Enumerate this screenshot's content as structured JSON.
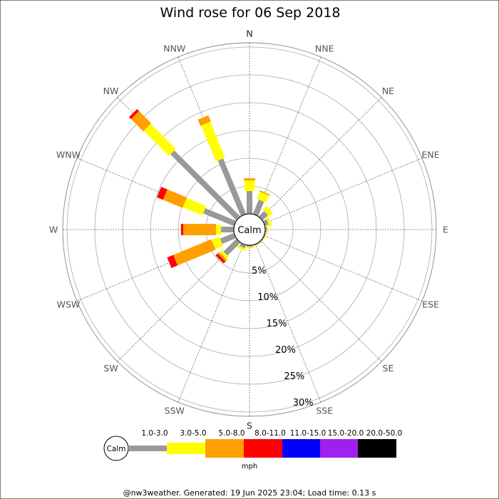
{
  "chart_data": {
    "type": "wind-rose",
    "title": "Wind rose for 06 Sep 2018",
    "directions": [
      "N",
      "NNE",
      "NE",
      "ENE",
      "E",
      "ESE",
      "SE",
      "SSE",
      "S",
      "SSW",
      "SW",
      "WSW",
      "W",
      "WNW",
      "NW",
      "NNW"
    ],
    "ring_labels": [
      "5%",
      "10%",
      "15%",
      "20%",
      "25%",
      "30%"
    ],
    "ring_values": [
      5,
      10,
      15,
      20,
      25,
      30
    ],
    "calm_label": "Calm",
    "units": "mph",
    "speed_bins": [
      {
        "label": "1.0-3.0",
        "color": "#999999"
      },
      {
        "label": "3.0-5.0",
        "color": "#ffff00"
      },
      {
        "label": "5.0-8.0",
        "color": "#ff9f00"
      },
      {
        "label": "8.0-11.0",
        "color": "#ff0000"
      },
      {
        "label": "11.0-15.0",
        "color": "#0000ff"
      },
      {
        "label": "15.0-20.0",
        "color": "#a020f0"
      },
      {
        "label": "20.0-50.0",
        "color": "#000000"
      }
    ],
    "cumulative_percent": {
      "N": [
        4.1,
        6.0,
        6.4,
        6.4,
        6.4,
        6.4,
        6.4
      ],
      "NNE": [
        2.8,
        4.2,
        4.4,
        4.4,
        4.4,
        4.4,
        4.4
      ],
      "NE": [
        1.4,
        2.3,
        2.3,
        2.3,
        2.3,
        2.3,
        2.3
      ],
      "ENE": [
        0.7,
        1.2,
        1.2,
        1.2,
        1.2,
        1.2,
        1.2
      ],
      "E": [
        0.3,
        0.5,
        0.5,
        0.5,
        0.5,
        0.5,
        0.5
      ],
      "ESE": [
        0.2,
        0.3,
        0.3,
        0.3,
        0.3,
        0.3,
        0.3
      ],
      "SE": [
        0.2,
        0.3,
        0.3,
        0.3,
        0.3,
        0.3,
        0.3
      ],
      "SSE": [
        0.2,
        0.3,
        0.3,
        0.3,
        0.3,
        0.3,
        0.3
      ],
      "S": [
        0.3,
        0.5,
        0.5,
        0.5,
        0.5,
        0.5,
        0.5
      ],
      "SSW": [
        0.6,
        1.0,
        1.0,
        1.0,
        1.0,
        1.0,
        1.0
      ],
      "SW": [
        3.3,
        3.9,
        4.3,
        4.8,
        4.8,
        4.8,
        4.8
      ],
      "WSW": [
        2.7,
        4.2,
        11.6,
        12.8,
        12.8,
        12.8,
        12.8
      ],
      "W": [
        2.3,
        3.2,
        9.1,
        9.5,
        9.5,
        9.5,
        9.5
      ],
      "WNW": [
        6.0,
        9.8,
        13.6,
        14.8,
        14.8,
        14.8,
        14.8
      ],
      "NW": [
        16.8,
        23.2,
        26.3,
        26.8,
        26.8,
        26.8,
        26.8
      ],
      "NNW": [
        10.8,
        17.8,
        19.0,
        19.0,
        19.0,
        19.0,
        19.0
      ]
    }
  },
  "footer": "@nw3weather. Generated: 19 Jun 2025 23:04; Load time: 0.13 s"
}
